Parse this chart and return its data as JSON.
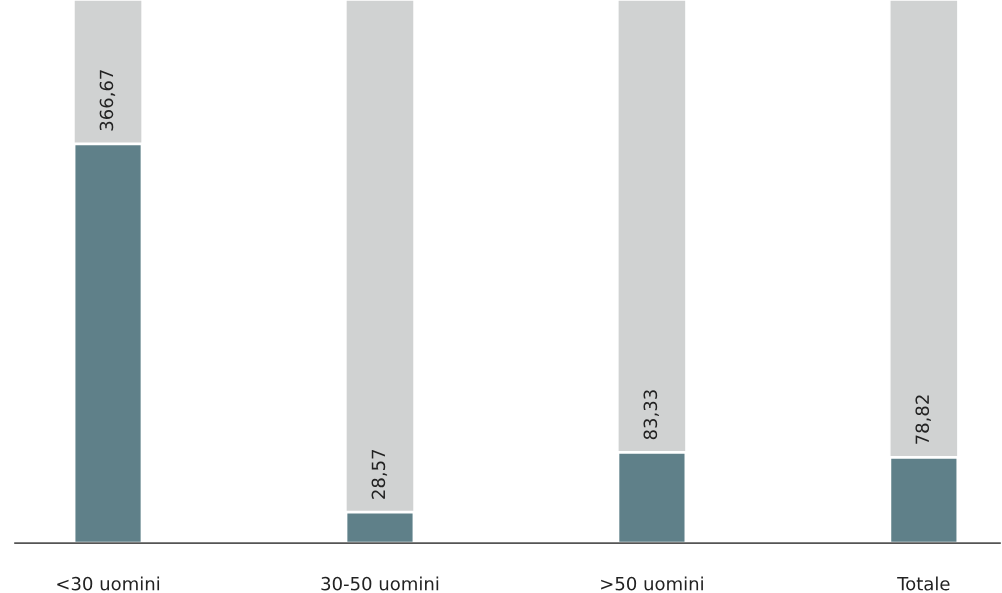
{
  "chart_data": {
    "type": "bar",
    "categories": [
      "<30 uomini",
      "30-50 uomini",
      ">50 uomini",
      "Totale"
    ],
    "values": [
      366.67,
      28.57,
      83.33,
      78.82
    ],
    "value_labels": [
      "366,67",
      "28,57",
      "83,33",
      "78,82"
    ],
    "color": "#5f8089"
  }
}
